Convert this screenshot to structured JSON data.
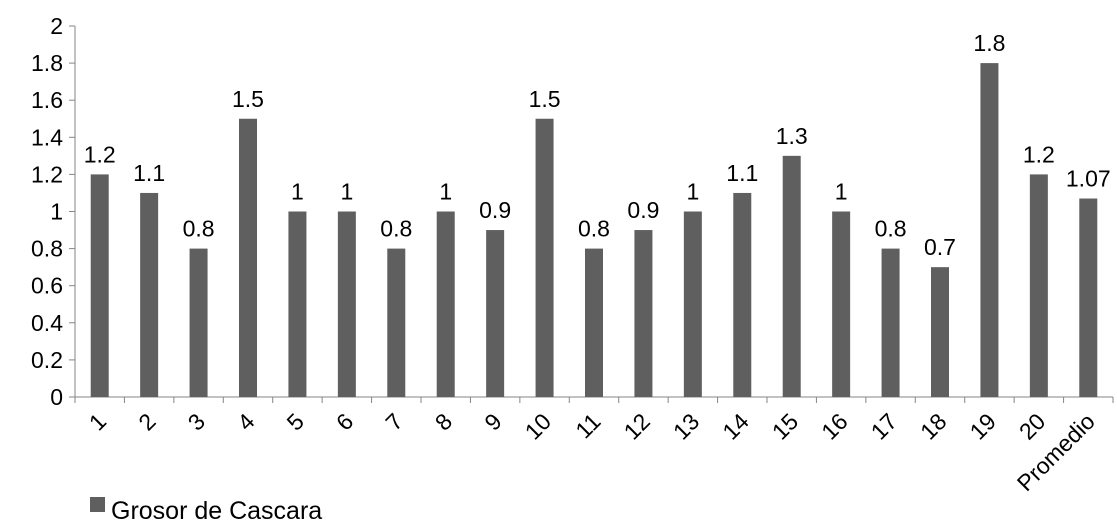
{
  "chart_data": {
    "type": "bar",
    "categories": [
      "1",
      "2",
      "3",
      "4",
      "5",
      "6",
      "7",
      "8",
      "9",
      "10",
      "11",
      "12",
      "13",
      "14",
      "15",
      "16",
      "17",
      "18",
      "19",
      "20",
      "Promedio"
    ],
    "series": [
      {
        "name": "Grosor de Cascara",
        "values": [
          1.2,
          1.1,
          0.8,
          1.5,
          1,
          1,
          0.8,
          1,
          0.9,
          1.5,
          0.8,
          0.9,
          1,
          1.1,
          1.3,
          1,
          0.8,
          0.7,
          1.8,
          1.2,
          1.07
        ],
        "value_labels": [
          "1.2",
          "1.1",
          "0.8",
          "1.5",
          "1",
          "1",
          "0.8",
          "1",
          "0.9",
          "1.5",
          "0.8",
          "0.9",
          "1",
          "1.1",
          "1.3",
          "1",
          "0.8",
          "0.7",
          "1.8",
          "1.2",
          "1.07"
        ]
      }
    ],
    "ylim": [
      0,
      2
    ],
    "yticks": [
      "0",
      "0.2",
      "0.4",
      "0.6",
      "0.8",
      "1",
      "1.2",
      "1.4",
      "1.6",
      "1.8",
      "2"
    ],
    "grid": false,
    "legend_position": "bottom-left",
    "colors": {
      "bar": "#5f5f5f",
      "axis": "#868686",
      "text": "#000000"
    }
  }
}
